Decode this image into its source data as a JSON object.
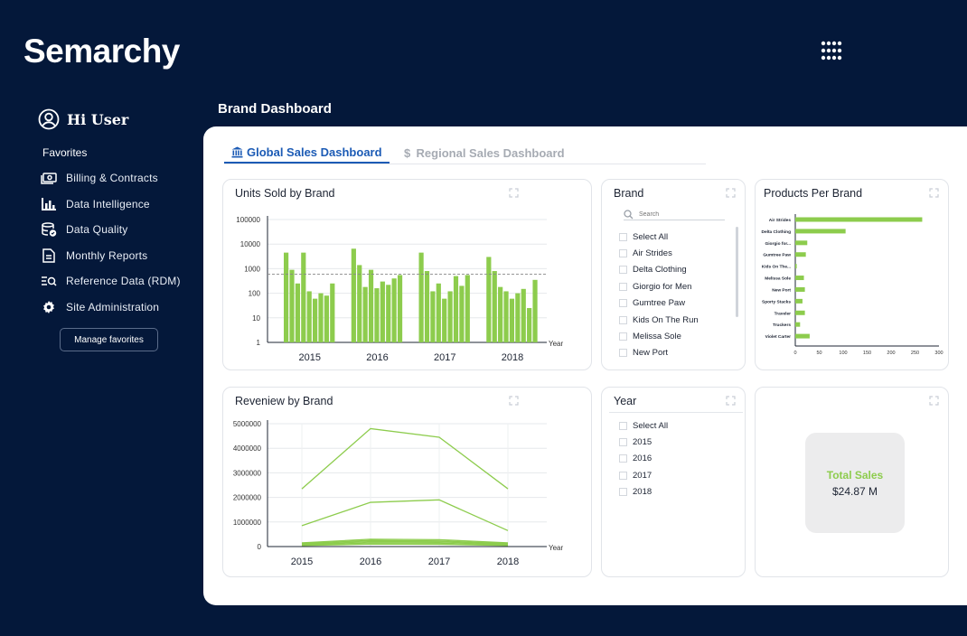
{
  "app": {
    "logo": "Semarchy"
  },
  "sidebar": {
    "greeting": "Hi User",
    "favorites_title": "Favorites",
    "favorites": [
      {
        "label": "Billing & Contracts",
        "icon": "billing-icon"
      },
      {
        "label": "Data Intelligence",
        "icon": "bar-chart-icon"
      },
      {
        "label": "Data Quality",
        "icon": "database-check-icon"
      },
      {
        "label": "Monthly Reports",
        "icon": "document-icon"
      },
      {
        "label": "Reference Data (RDM)",
        "icon": "reference-search-icon"
      },
      {
        "label": "Site Administration",
        "icon": "gear-icon"
      }
    ],
    "manage_label": "Manage favorites"
  },
  "page": {
    "title": "Brand Dashboard"
  },
  "tabs": [
    {
      "label": "Global Sales Dashboard",
      "icon": "bank-icon",
      "active": true
    },
    {
      "label": "Regional Sales Dashboard",
      "icon": "dollar-icon",
      "active": false
    }
  ],
  "cards": {
    "units": {
      "title": "Units Sold by Brand"
    },
    "brand_filter": {
      "title": "Brand",
      "search_placeholder": "Search",
      "items": [
        "Select All",
        "Air Strides",
        "Delta Clothing",
        "Giorgio for Men",
        "Gumtree Paw",
        "Kids On The Run",
        "Melissa Sole",
        "New Port"
      ]
    },
    "products": {
      "title": "Products Per Brand"
    },
    "revenue": {
      "title": "Reveniew by Brand"
    },
    "year_filter": {
      "title": "Year",
      "items": [
        "Select All",
        "2015",
        "2016",
        "2017",
        "2018"
      ]
    },
    "total_sales": {
      "label": "Total Sales",
      "value": "$24.87 M"
    }
  },
  "colors": {
    "accent_green": "#8dcc4d",
    "accent_blue": "#1c5bb5",
    "background": "#04183a"
  },
  "chart_data": [
    {
      "type": "bar",
      "title": "Units Sold by Brand",
      "xlabel": "Year",
      "scale": "log",
      "ylim": [
        1,
        100000
      ],
      "yticks": [
        "100000",
        "10000",
        "1000",
        "100",
        "10",
        "1"
      ],
      "reference_line": 600,
      "categories": [
        "2015",
        "2016",
        "2017",
        "2018"
      ],
      "series_values": [
        [
          4500,
          900,
          250,
          4500,
          120,
          60,
          100,
          80,
          250
        ],
        [
          6500,
          1400,
          180,
          900,
          160,
          300,
          220,
          400,
          550
        ],
        [
          4500,
          800,
          120,
          250,
          60,
          120,
          500,
          200,
          550
        ],
        [
          3000,
          800,
          180,
          120,
          60,
          100,
          150,
          25,
          350
        ]
      ]
    },
    {
      "type": "bar",
      "orientation": "horizontal",
      "title": "Products Per Brand",
      "xlim": [
        0,
        300
      ],
      "xticks": [
        "0",
        "50",
        "100",
        "150",
        "200",
        "250",
        "300"
      ],
      "categories": [
        "Air Strides",
        "Delta Clothing",
        "Giorgio for...",
        "Gumtree Paw",
        "Kids On The...",
        "Melissa Sole",
        "New Port",
        "Sporty Stacks",
        "Traveler",
        "Truckers",
        "Violet Carter"
      ],
      "values": [
        265,
        105,
        25,
        22,
        3,
        18,
        20,
        15,
        20,
        10,
        30
      ]
    },
    {
      "type": "line",
      "title": "Reveniew by Brand",
      "xlabel": "Year",
      "ylim": [
        0,
        5000000
      ],
      "yticks": [
        "5000000",
        "4000000",
        "3000000",
        "2000000",
        "1000000",
        "0"
      ],
      "categories": [
        "2015",
        "2016",
        "2017",
        "2018"
      ],
      "series": [
        {
          "values": [
            2350000,
            4800000,
            4450000,
            2350000
          ]
        },
        {
          "values": [
            850000,
            1800000,
            1900000,
            650000
          ]
        },
        {
          "values": [
            150000,
            300000,
            280000,
            150000
          ]
        },
        {
          "values": [
            120000,
            250000,
            230000,
            120000
          ]
        },
        {
          "values": [
            90000,
            200000,
            190000,
            90000
          ]
        },
        {
          "values": [
            60000,
            150000,
            140000,
            60000
          ]
        },
        {
          "values": [
            40000,
            100000,
            95000,
            40000
          ]
        }
      ]
    }
  ]
}
